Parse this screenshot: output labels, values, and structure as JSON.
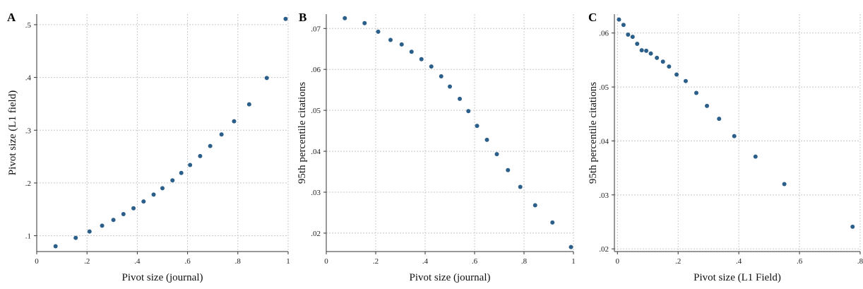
{
  "chart_data": [
    {
      "panel_label": "A",
      "type": "scatter",
      "xlabel": "Pivot size (journal)",
      "ylabel": "Pivot size (L1 field)",
      "xlim": [
        0,
        1
      ],
      "ylim": [
        0.07,
        0.52
      ],
      "xticks": [
        0,
        0.2,
        0.4,
        0.6,
        0.8,
        1
      ],
      "xtick_labels": [
        "0",
        ".2",
        ".4",
        ".6",
        ".8",
        "1"
      ],
      "yticks": [
        0.1,
        0.2,
        0.3,
        0.4,
        0.5
      ],
      "ytick_labels": [
        ".1",
        ".2",
        ".3",
        ".4",
        ".5"
      ],
      "grid": true,
      "x": [
        0.075,
        0.155,
        0.21,
        0.26,
        0.305,
        0.345,
        0.385,
        0.425,
        0.465,
        0.5,
        0.54,
        0.575,
        0.61,
        0.65,
        0.69,
        0.735,
        0.785,
        0.845,
        0.915,
        0.99
      ],
      "y": [
        0.08,
        0.096,
        0.108,
        0.119,
        0.13,
        0.141,
        0.152,
        0.165,
        0.178,
        0.19,
        0.205,
        0.219,
        0.234,
        0.251,
        0.27,
        0.292,
        0.317,
        0.349,
        0.399,
        0.511
      ]
    },
    {
      "panel_label": "B",
      "type": "scatter",
      "xlabel": "Pivot size (journal)",
      "ylabel": "95th percentile citations",
      "xlim": [
        0,
        1
      ],
      "ylim": [
        0.0155,
        0.0735
      ],
      "xticks": [
        0,
        0.2,
        0.4,
        0.6,
        0.8,
        1
      ],
      "xtick_labels": [
        "0",
        ".2",
        ".4",
        ".6",
        ".8",
        "1"
      ],
      "yticks": [
        0.02,
        0.03,
        0.04,
        0.05,
        0.06,
        0.07
      ],
      "ytick_labels": [
        ".02",
        ".03",
        ".04",
        ".05",
        ".06",
        ".07"
      ],
      "grid": true,
      "x": [
        0.075,
        0.155,
        0.21,
        0.26,
        0.305,
        0.345,
        0.385,
        0.425,
        0.465,
        0.5,
        0.54,
        0.575,
        0.61,
        0.65,
        0.69,
        0.735,
        0.785,
        0.845,
        0.915,
        0.99
      ],
      "y": [
        0.0725,
        0.0713,
        0.0692,
        0.0672,
        0.0661,
        0.0643,
        0.0625,
        0.0607,
        0.0583,
        0.0558,
        0.0528,
        0.0498,
        0.0462,
        0.0428,
        0.0393,
        0.0354,
        0.0313,
        0.0268,
        0.0226,
        0.0166
      ]
    },
    {
      "panel_label": "C",
      "type": "scatter",
      "xlabel": "Pivot size (L1 Field)",
      "ylabel": "95th percentile citations",
      "xlim": [
        -0.01,
        0.8
      ],
      "ylim": [
        0.0195,
        0.0635
      ],
      "xticks": [
        0,
        0.2,
        0.4,
        0.6,
        0.8
      ],
      "xtick_labels": [
        "0",
        ".2",
        ".4",
        ".6",
        ".8"
      ],
      "yticks": [
        0.02,
        0.03,
        0.04,
        0.05,
        0.06
      ],
      "ytick_labels": [
        ".02",
        ".03",
        ".04",
        ".05",
        ".06"
      ],
      "grid": true,
      "x": [
        0.005,
        0.02,
        0.035,
        0.05,
        0.065,
        0.08,
        0.095,
        0.11,
        0.13,
        0.15,
        0.17,
        0.195,
        0.225,
        0.26,
        0.295,
        0.335,
        0.385,
        0.455,
        0.55,
        0.775
      ],
      "y": [
        0.0625,
        0.0615,
        0.0597,
        0.0593,
        0.058,
        0.0568,
        0.0567,
        0.0562,
        0.0554,
        0.0547,
        0.0538,
        0.0523,
        0.0511,
        0.0489,
        0.0465,
        0.0441,
        0.0409,
        0.0371,
        0.032,
        0.0241
      ]
    }
  ]
}
